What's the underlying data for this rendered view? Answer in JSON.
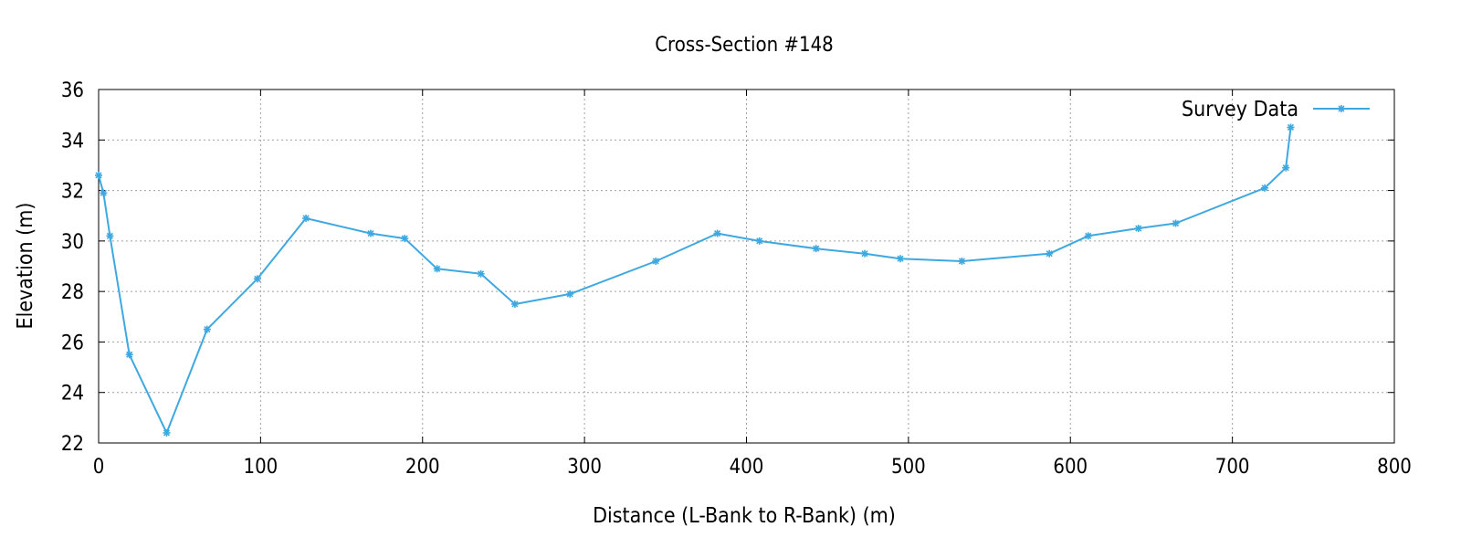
{
  "chart_data": {
    "type": "line",
    "title": "Cross-Section #148",
    "xlabel": "Distance (L-Bank to R-Bank) (m)",
    "ylabel": "Elevation (m)",
    "xlim": [
      0,
      800
    ],
    "ylim": [
      22,
      36
    ],
    "x_ticks": [
      0,
      100,
      200,
      300,
      400,
      500,
      600,
      700,
      800
    ],
    "y_ticks": [
      22,
      24,
      26,
      28,
      30,
      32,
      34,
      36
    ],
    "grid": true,
    "legend_position": "top-right",
    "series": [
      {
        "name": "Survey Data",
        "color": "#3ea8e0",
        "marker": "asterisk",
        "x": [
          0,
          3,
          7,
          19,
          42,
          67,
          98,
          128,
          168,
          189,
          209,
          236,
          257,
          291,
          344,
          382,
          408,
          443,
          473,
          495,
          533,
          587,
          611,
          642,
          665,
          720,
          733,
          736
        ],
        "y": [
          32.6,
          31.9,
          30.2,
          25.5,
          22.4,
          26.5,
          28.5,
          30.9,
          30.3,
          30.1,
          28.9,
          28.7,
          27.5,
          27.9,
          29.2,
          30.3,
          30.0,
          29.7,
          29.5,
          29.3,
          29.2,
          29.5,
          30.2,
          30.5,
          30.7,
          32.1,
          32.9,
          34.5
        ]
      }
    ]
  }
}
